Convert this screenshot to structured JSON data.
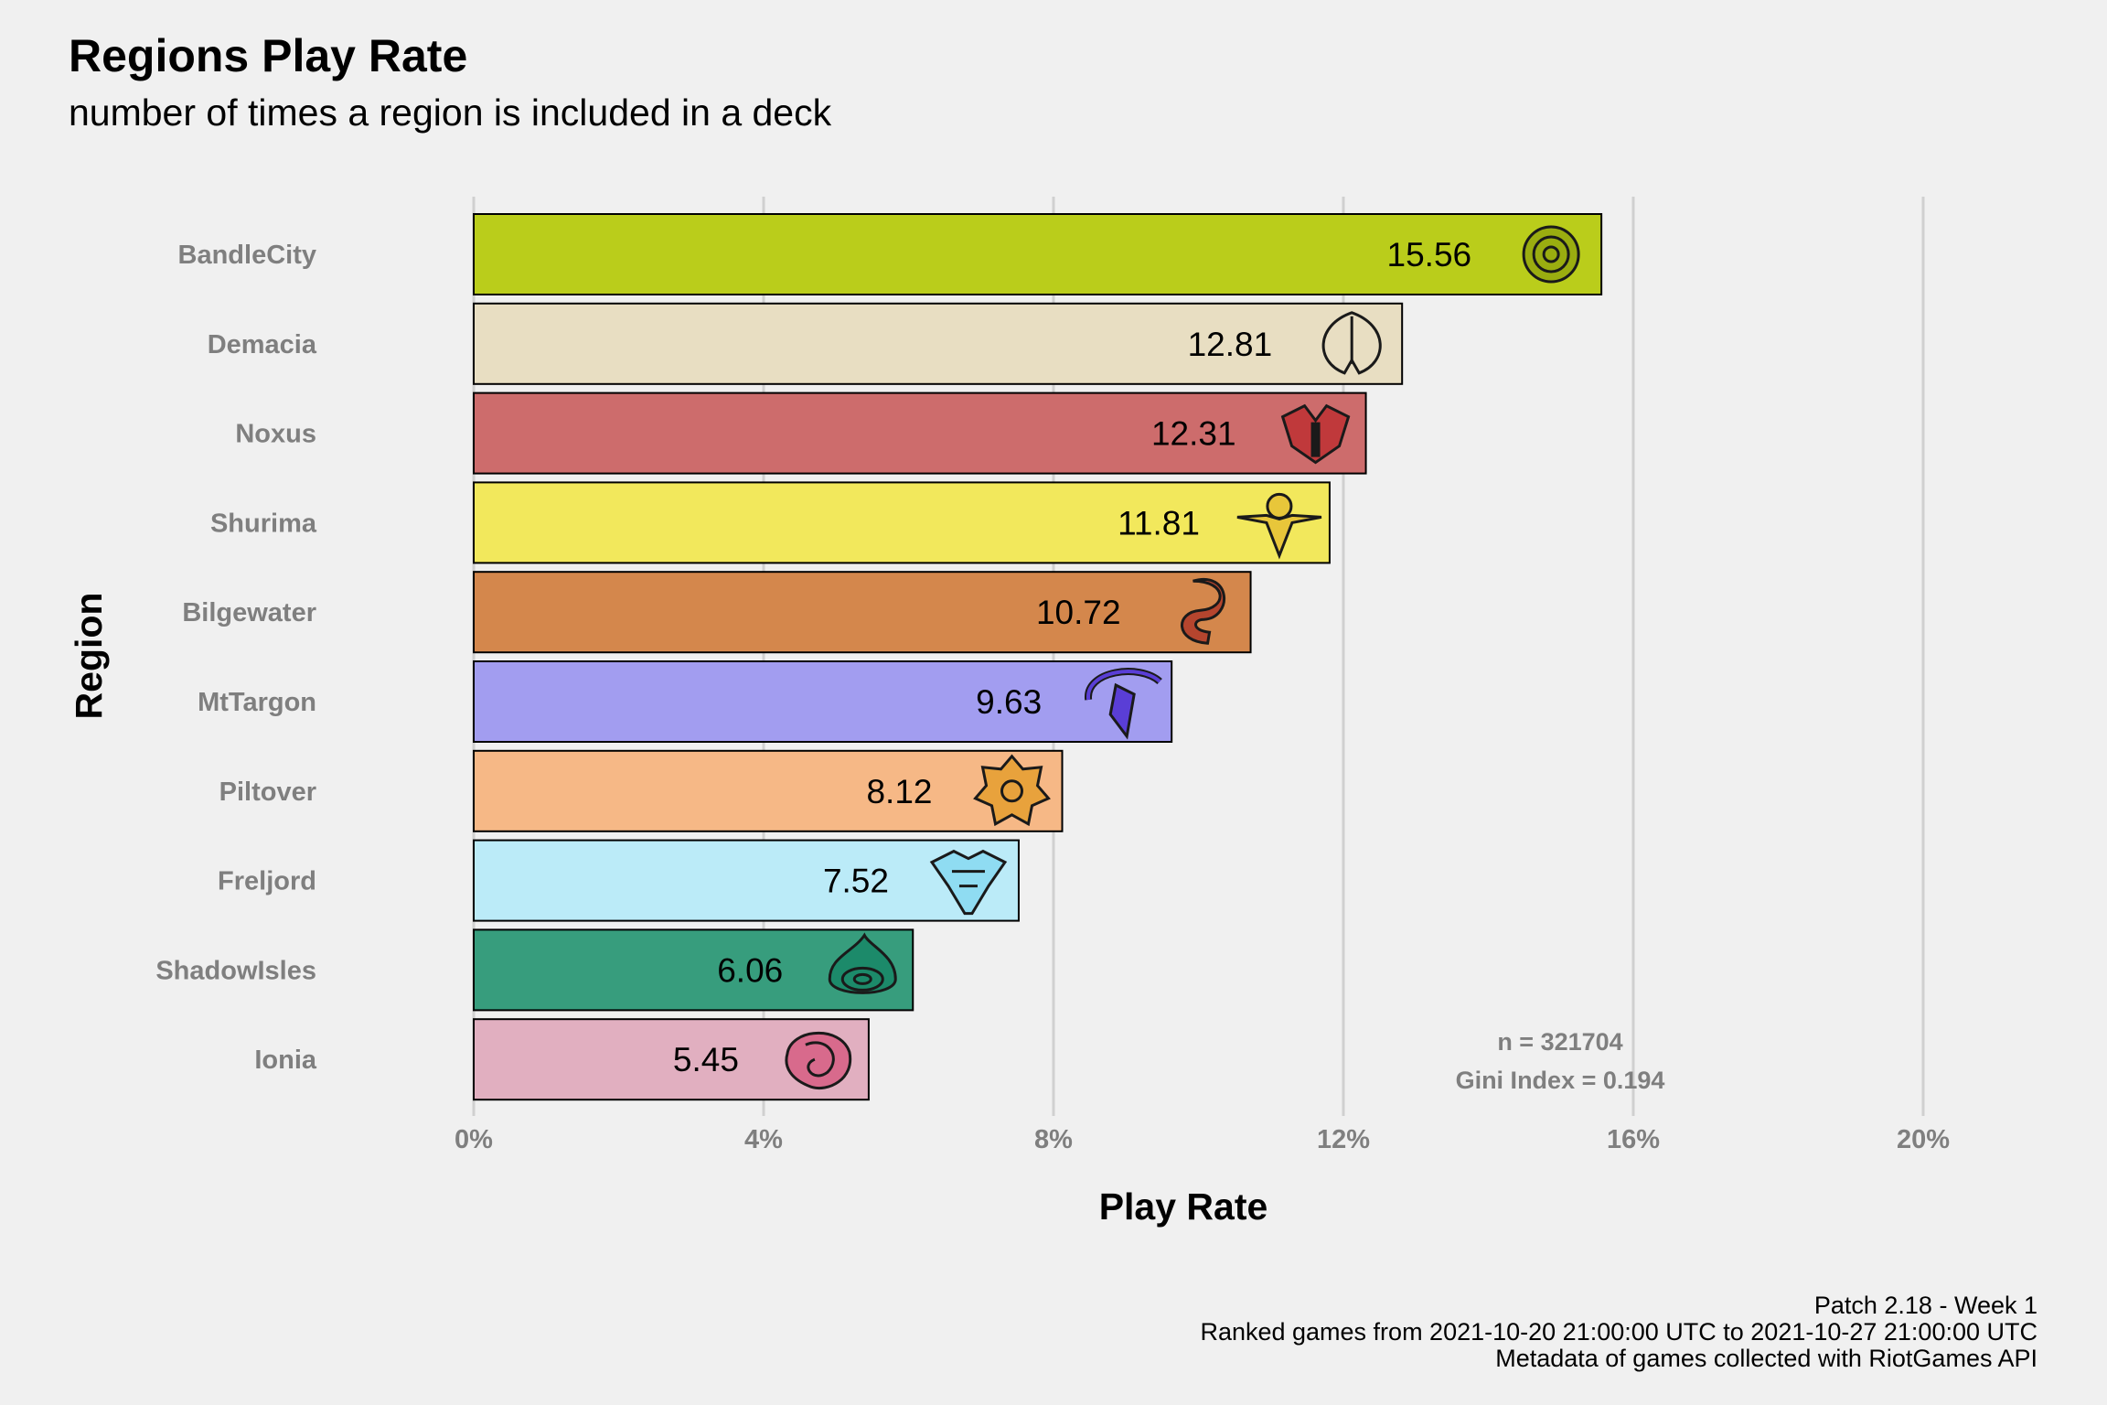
{
  "header": {
    "title": "Regions Play Rate",
    "subtitle": "number of times a region is included in a deck"
  },
  "caption": {
    "line1": "Patch 2.18 - Week 1",
    "line2": "Ranked games from 2021-10-20 21:00:00 UTC to 2021-10-27 21:00:00 UTC",
    "line3": "Metadata of games collected with RiotGames API"
  },
  "chart_data": {
    "type": "bar",
    "orientation": "horizontal",
    "title": "Regions Play Rate",
    "subtitle": "number of times a region is included in a deck",
    "xlabel": "Play Rate",
    "ylabel": "Region",
    "xlim": [
      0,
      20
    ],
    "x_ticks": [
      0,
      4,
      8,
      12,
      16,
      20
    ],
    "x_tick_labels": [
      "0%",
      "4%",
      "8%",
      "12%",
      "16%",
      "20%"
    ],
    "grid": "vertical major",
    "categories": [
      "BandleCity",
      "Demacia",
      "Noxus",
      "Shurima",
      "Bilgewater",
      "MtTargon",
      "Piltover",
      "Freljord",
      "ShadowIsles",
      "Ionia"
    ],
    "values": [
      15.56,
      12.81,
      12.31,
      11.81,
      10.72,
      9.63,
      8.12,
      7.52,
      6.06,
      5.45
    ],
    "value_labels": [
      "15.56",
      "12.81",
      "12.31",
      "11.81",
      "10.72",
      "9.63",
      "8.12",
      "7.52",
      "6.06",
      "5.45"
    ],
    "colors": [
      "#bacd1b",
      "#e8dec2",
      "#cd6c6c",
      "#f2e85c",
      "#d4874c",
      "#a29df0",
      "#f6b886",
      "#bbebf8",
      "#379d7d",
      "#e1afc0"
    ],
    "icon_colors": [
      "#9aad10",
      "#e8dec2",
      "#c0393b",
      "#e8c63a",
      "#b5452e",
      "#5a3ed6",
      "#e8a23c",
      "#8fdcf2",
      "#1c8a6a",
      "#d86a8c"
    ],
    "icons": [
      "bandlecity-icon",
      "demacia-icon",
      "noxus-icon",
      "shurima-icon",
      "bilgewater-icon",
      "mttargon-icon",
      "piltover-icon",
      "freljord-icon",
      "shadowisles-icon",
      "ionia-icon"
    ],
    "annotation": [
      "n = 321704",
      "Gini Index = 0.194"
    ]
  }
}
